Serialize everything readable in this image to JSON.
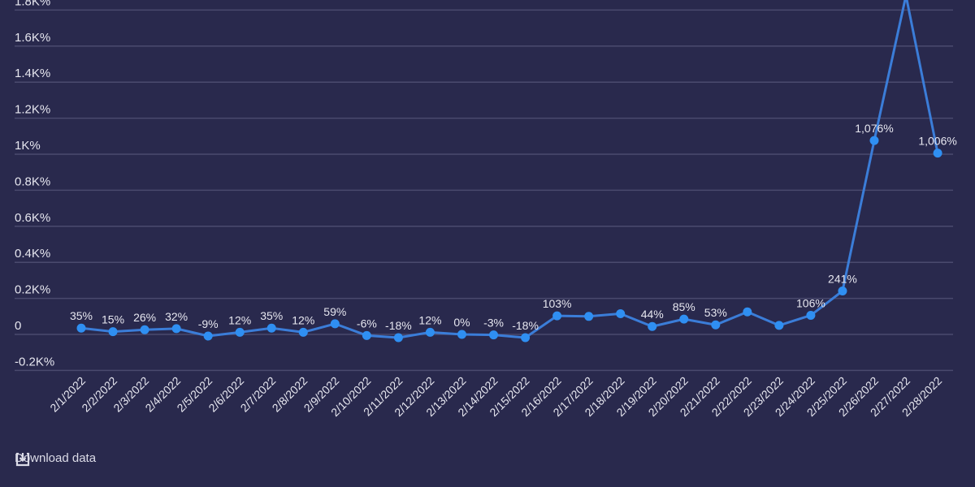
{
  "chart_data": {
    "type": "line",
    "title": "",
    "xlabel": "",
    "ylabel": "",
    "ylim": [
      -200,
      1800
    ],
    "y_ticks": [
      "-0.2K%",
      "0",
      "0.2K%",
      "0.4K%",
      "0.6K%",
      "0.8K%",
      "1K%",
      "1.2K%",
      "1.4K%",
      "1.6K%",
      "1.8K%"
    ],
    "y_tick_values": [
      -200,
      0,
      200,
      400,
      600,
      800,
      1000,
      1200,
      1400,
      1600,
      1800
    ],
    "grid": true,
    "categories": [
      "2/1/2022",
      "2/2/2022",
      "2/3/2022",
      "2/4/2022",
      "2/5/2022",
      "2/6/2022",
      "2/7/2022",
      "2/8/2022",
      "2/9/2022",
      "2/10/2022",
      "2/11/2022",
      "2/12/2022",
      "2/13/2022",
      "2/14/2022",
      "2/15/2022",
      "2/16/2022",
      "2/17/2022",
      "2/18/2022",
      "2/19/2022",
      "2/20/2022",
      "2/21/2022",
      "2/22/2022",
      "2/23/2022",
      "2/24/2022",
      "2/25/2022",
      "2/26/2022",
      "2/27/2022",
      "2/28/2022"
    ],
    "values": [
      35,
      15,
      26,
      32,
      -9,
      12,
      35,
      12,
      59,
      -6,
      -18,
      12,
      0,
      -3,
      -18,
      103,
      100,
      115,
      44,
      85,
      53,
      125,
      50,
      106,
      241,
      1076,
      1880,
      1006
    ],
    "data_labels": [
      "35%",
      "15%",
      "26%",
      "32%",
      "-9%",
      "12%",
      "35%",
      "12%",
      "59%",
      "-6%",
      "-18%",
      "12%",
      "0%",
      "-3%",
      "-18%",
      "103%",
      "",
      "",
      "44%",
      "85%",
      "53%",
      "",
      "",
      "106%",
      "241%",
      "1,076%",
      "",
      "1,006%"
    ],
    "colors": {
      "background": "#29294d",
      "line": "#3b7dd8",
      "point": "#2f8ff2",
      "grid": "#4a4a6e",
      "text": "#e6e6ef"
    }
  },
  "footer": {
    "download_label": "Download data",
    "download_icon": "download-icon"
  }
}
